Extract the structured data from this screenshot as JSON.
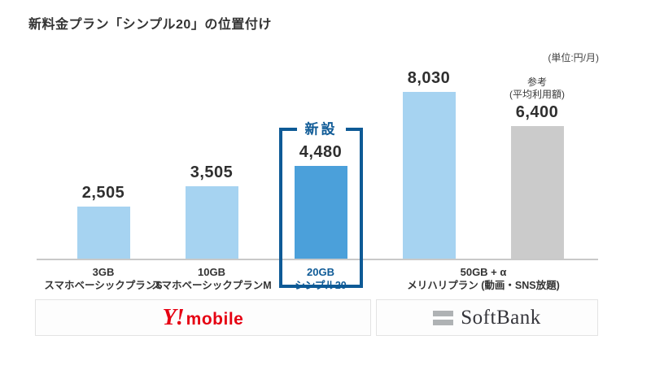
{
  "header": {
    "title": "新料金プラン「シンプル20」の位置付け",
    "unit_note": "(単位:円/月)"
  },
  "chart_data": {
    "type": "bar",
    "title": "新料金プラン「シンプル20」の位置付け",
    "unit": "円/月",
    "ylim": [
      0,
      8500
    ],
    "grid": false,
    "legend": false,
    "categories": [
      "3GB スマホベーシックプランS",
      "10GB スマホベーシックプランM",
      "20GB シンプル20",
      "50GB+α メリハリプラン(動画・SNS放題)",
      "参考(平均利用額)"
    ],
    "values": [
      2505,
      3505,
      4480,
      8030,
      6400
    ],
    "value_labels": [
      "2,505",
      "3,505",
      "4,480",
      "8,030",
      "6,400"
    ],
    "bar_colors": [
      "#A6D3F1",
      "#A6D3F1",
      "#4BA0DA",
      "#A6D3F1",
      "#CBCBCB"
    ],
    "highlight": {
      "label": "新設",
      "bar_index": 2,
      "box_color": "#0E5A96"
    },
    "reference_note": {
      "line1": "参考",
      "line2": "(平均利用額)"
    },
    "ticks": [
      {
        "line1": "3GB",
        "line2": "スマホベーシックプランS"
      },
      {
        "line1": "10GB",
        "line2": "スマホベーシックプランM"
      },
      {
        "line1": "20GB",
        "line2": "シンプル20"
      },
      {
        "line1": "50GB + α",
        "line2": "メリハリプラン (動画・SNS放題)"
      }
    ],
    "groups": [
      {
        "brand": "Y!mobile",
        "bar_indexes": [
          0,
          1,
          2
        ]
      },
      {
        "brand": "SoftBank",
        "bar_indexes": [
          3,
          4
        ]
      }
    ]
  },
  "brands": {
    "ymobile": {
      "logo_y": "Y!",
      "logo_text": "mobile",
      "color": "#E60012"
    },
    "softbank": {
      "logo_text": "SoftBank",
      "bars_icon_color": "#AFB2B4"
    }
  }
}
